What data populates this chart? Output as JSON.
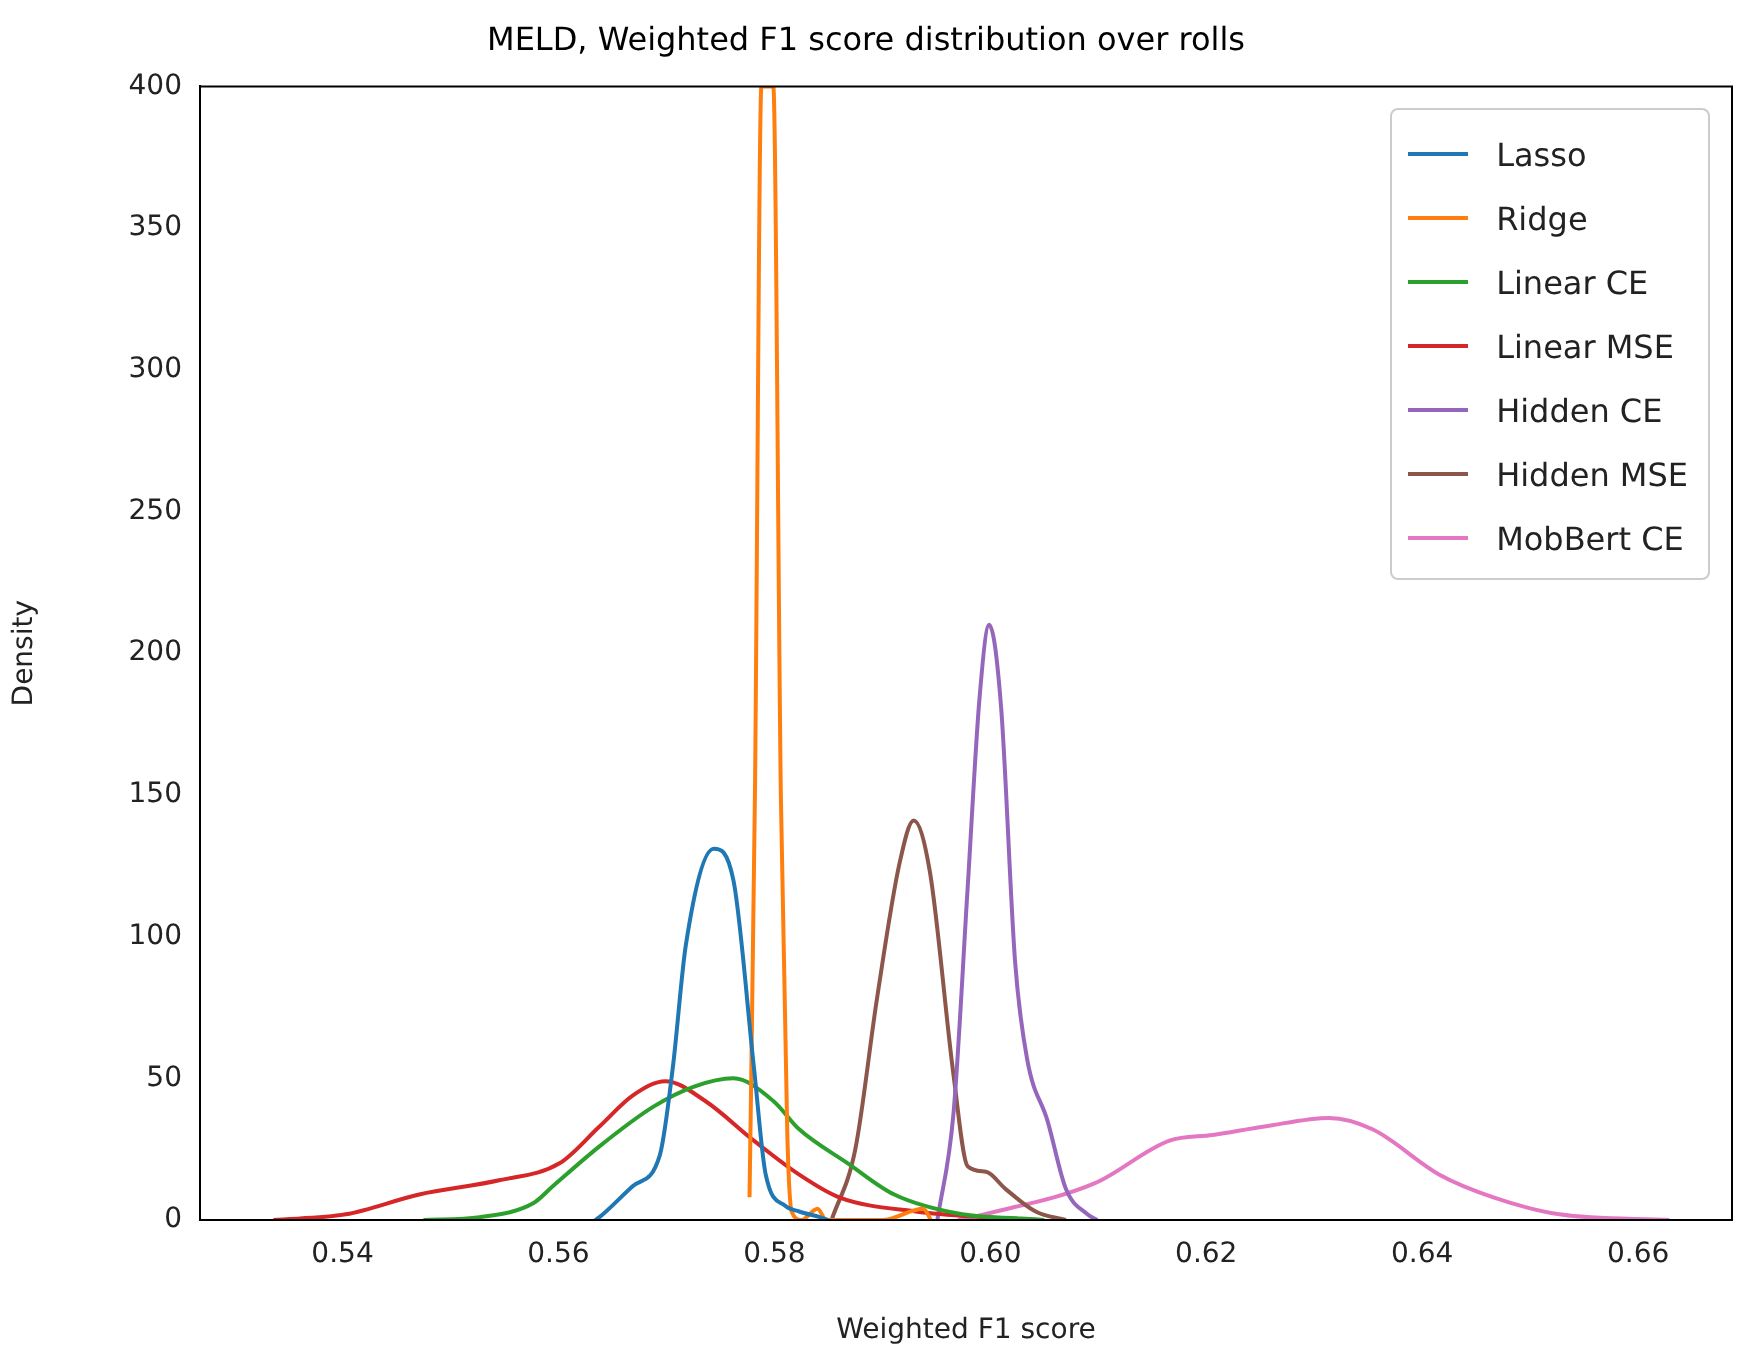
{
  "chart_data": {
    "type": "line",
    "title": "MELD, Weighted F1 score distribution over rolls",
    "xlabel": "Weighted F1 score",
    "ylabel": "Density",
    "xlim": [
      0.5268,
      0.6687
    ],
    "ylim": [
      0,
      400
    ],
    "xticks": [
      0.54,
      0.56,
      0.58,
      {
        "value": 0.6,
        "label": "0.60"
      },
      0.62,
      0.64,
      0.66
    ],
    "yticks": [
      0,
      50,
      100,
      150,
      200,
      250,
      300,
      350,
      400
    ],
    "grid": false,
    "legend": "top right",
    "marker": "none",
    "line_style": "solid",
    "series": [
      {
        "name": "Lasso",
        "color": "#1f77b4",
        "x": [
          0.5634,
          0.5638,
          0.5669,
          0.5694,
          0.5706,
          0.5718,
          0.5744,
          0.5762,
          0.5781,
          0.5792,
          0.581,
          0.5823,
          0.5842,
          0.585
        ],
        "values": [
          0,
          1,
          12,
          23,
          54,
          97,
          131,
          120,
          54,
          16,
          5,
          3,
          1,
          0
        ]
      },
      {
        "name": "Ridge",
        "color": "#ff7f0e",
        "x": [
          0.5777,
          0.5782,
          0.5788,
          0.5799,
          0.5806,
          0.5812,
          0.5816,
          0.5825,
          0.584,
          0.5848,
          0.59,
          0.5938,
          0.5945
        ],
        "values": [
          8,
          150,
          400,
          400,
          150,
          30,
          3,
          0,
          4,
          0,
          0,
          4,
          0
        ]
      },
      {
        "name": "Linear CE",
        "color": "#2ca02c",
        "x": [
          0.5475,
          0.5527,
          0.5577,
          0.5595,
          0.5638,
          0.5688,
          0.5725,
          0.5762,
          0.5799,
          0.5823,
          0.5868,
          0.5911,
          0.5974,
          0.6029,
          0.605
        ],
        "values": [
          0,
          1,
          6,
          12,
          26,
          40,
          47,
          50,
          42,
          32,
          20,
          9,
          2,
          0.5,
          0
        ]
      },
      {
        "name": "Linear MSE",
        "color": "#d62728",
        "x": [
          0.5336,
          0.5403,
          0.5471,
          0.5545,
          0.5601,
          0.5638,
          0.5669,
          0.5699,
          0.5736,
          0.5781,
          0.5823,
          0.586,
          0.5931,
          0.5994,
          0.6049
        ],
        "values": [
          0,
          2,
          9,
          14,
          20,
          33,
          44,
          49,
          42,
          28,
          16,
          8,
          3,
          1,
          0
        ]
      },
      {
        "name": "Hidden CE",
        "color": "#9467bd",
        "x": [
          0.5951,
          0.5966,
          0.5979,
          0.599,
          0.5999,
          0.601,
          0.6023,
          0.6034,
          0.6053,
          0.607,
          0.609,
          0.6099
        ],
        "values": [
          0,
          38,
          117,
          184,
          210,
          181,
          91,
          57,
          35,
          11,
          2,
          0
        ]
      },
      {
        "name": "Hidden MSE",
        "color": "#8c564b",
        "x": [
          0.5853,
          0.5875,
          0.5895,
          0.5916,
          0.5929,
          0.5944,
          0.5966,
          0.5979,
          0.5996,
          0.6014,
          0.6042,
          0.607
        ],
        "values": [
          0,
          25,
          78,
          126,
          141,
          123,
          51,
          19,
          17,
          11,
          3,
          0
        ]
      },
      {
        "name": "MobBert CE",
        "color": "#e377c2",
        "x": [
          0.597,
          0.5994,
          0.6097,
          0.6166,
          0.6206,
          0.6254,
          0.6314,
          0.6354,
          0.6416,
          0.6466,
          0.6527,
          0.6629
        ],
        "values": [
          0,
          2,
          13,
          28,
          30,
          33,
          36,
          32,
          16,
          8,
          2,
          0
        ]
      }
    ]
  }
}
